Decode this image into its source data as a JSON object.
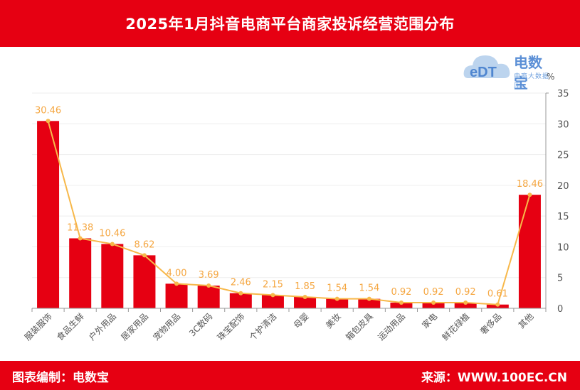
{
  "header": {
    "title": "2025年1月抖音电商平台商家投诉经营范围分布"
  },
  "footer": {
    "left": "图表编制：电数宝",
    "right": "来源：WWW.100EC.CN"
  },
  "logo": {
    "name": "电数宝",
    "sub": "电商大数据库",
    "mark": "eDT"
  },
  "colors": {
    "bar": "#e60012",
    "line": "#f7b84a",
    "label": "#f5a742",
    "header": "#e60012"
  },
  "chart_data": {
    "type": "bar",
    "categories": [
      "服装服饰",
      "食品生鲜",
      "户外用品",
      "居家用品",
      "宠物用品",
      "3C数码",
      "珠宝配饰",
      "个护清洁",
      "母婴",
      "美妆",
      "箱包皮具",
      "运动用品",
      "家电",
      "鲜花绿植",
      "奢侈品",
      "其他"
    ],
    "series": [
      {
        "type": "bar",
        "values": [
          30.46,
          11.38,
          10.46,
          8.62,
          4.0,
          3.69,
          2.46,
          2.15,
          1.85,
          1.54,
          1.54,
          0.92,
          0.92,
          0.92,
          0.61,
          18.46
        ]
      },
      {
        "type": "line",
        "values": [
          30.46,
          11.38,
          10.46,
          8.62,
          4.0,
          3.69,
          2.46,
          2.15,
          1.85,
          1.54,
          1.54,
          0.92,
          0.92,
          0.92,
          0.61,
          18.46
        ]
      }
    ],
    "data_labels": [
      "30.46",
      "11.38",
      "10.46",
      "8.62",
      "4.00",
      "3.69",
      "2.46",
      "2.15",
      "1.85",
      "1.54",
      "1.54",
      "0.92",
      "0.92",
      "0.92",
      "0.61",
      "18.46"
    ],
    "yunit": "%",
    "ylim": [
      0,
      35
    ],
    "yticks": [
      0,
      5,
      10,
      15,
      20,
      25,
      30,
      35
    ],
    "ytick_labels": [
      "0",
      "5",
      "10",
      "15",
      "20",
      "25",
      "30",
      "35"
    ],
    "y_axis_position": "right",
    "grid": true
  }
}
